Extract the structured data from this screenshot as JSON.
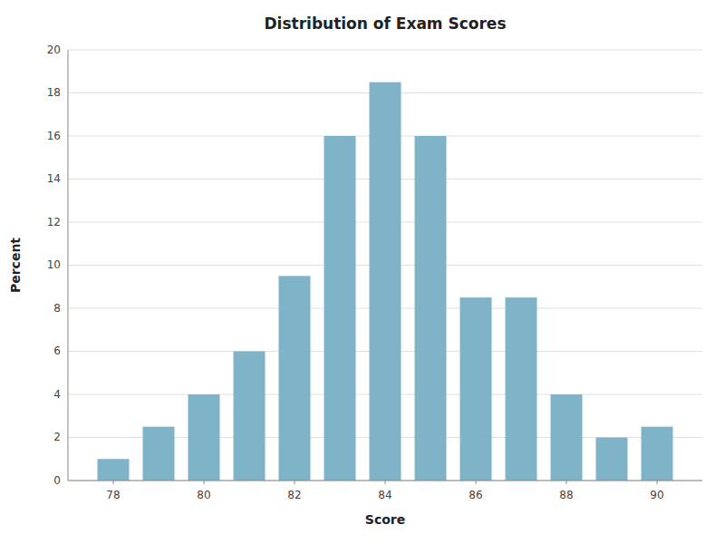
{
  "chart_data": {
    "type": "bar",
    "title": "Distribution of Exam Scores",
    "xlabel": "Score",
    "ylabel": "Percent",
    "x": [
      78,
      79,
      80,
      81,
      82,
      83,
      84,
      85,
      86,
      87,
      88,
      89,
      90
    ],
    "values": [
      1.0,
      2.5,
      4.0,
      6.0,
      9.5,
      16.0,
      18.5,
      16.0,
      8.5,
      8.5,
      4.0,
      2.0,
      2.5
    ],
    "color": "#7fb3c8",
    "xlim": [
      77,
      91
    ],
    "xticks": [
      78,
      80,
      82,
      84,
      86,
      88,
      90
    ],
    "ylim": [
      0,
      20
    ],
    "yticks": [
      0,
      2,
      4,
      6,
      8,
      10,
      12,
      14,
      16,
      18,
      20
    ],
    "grid": true
  }
}
